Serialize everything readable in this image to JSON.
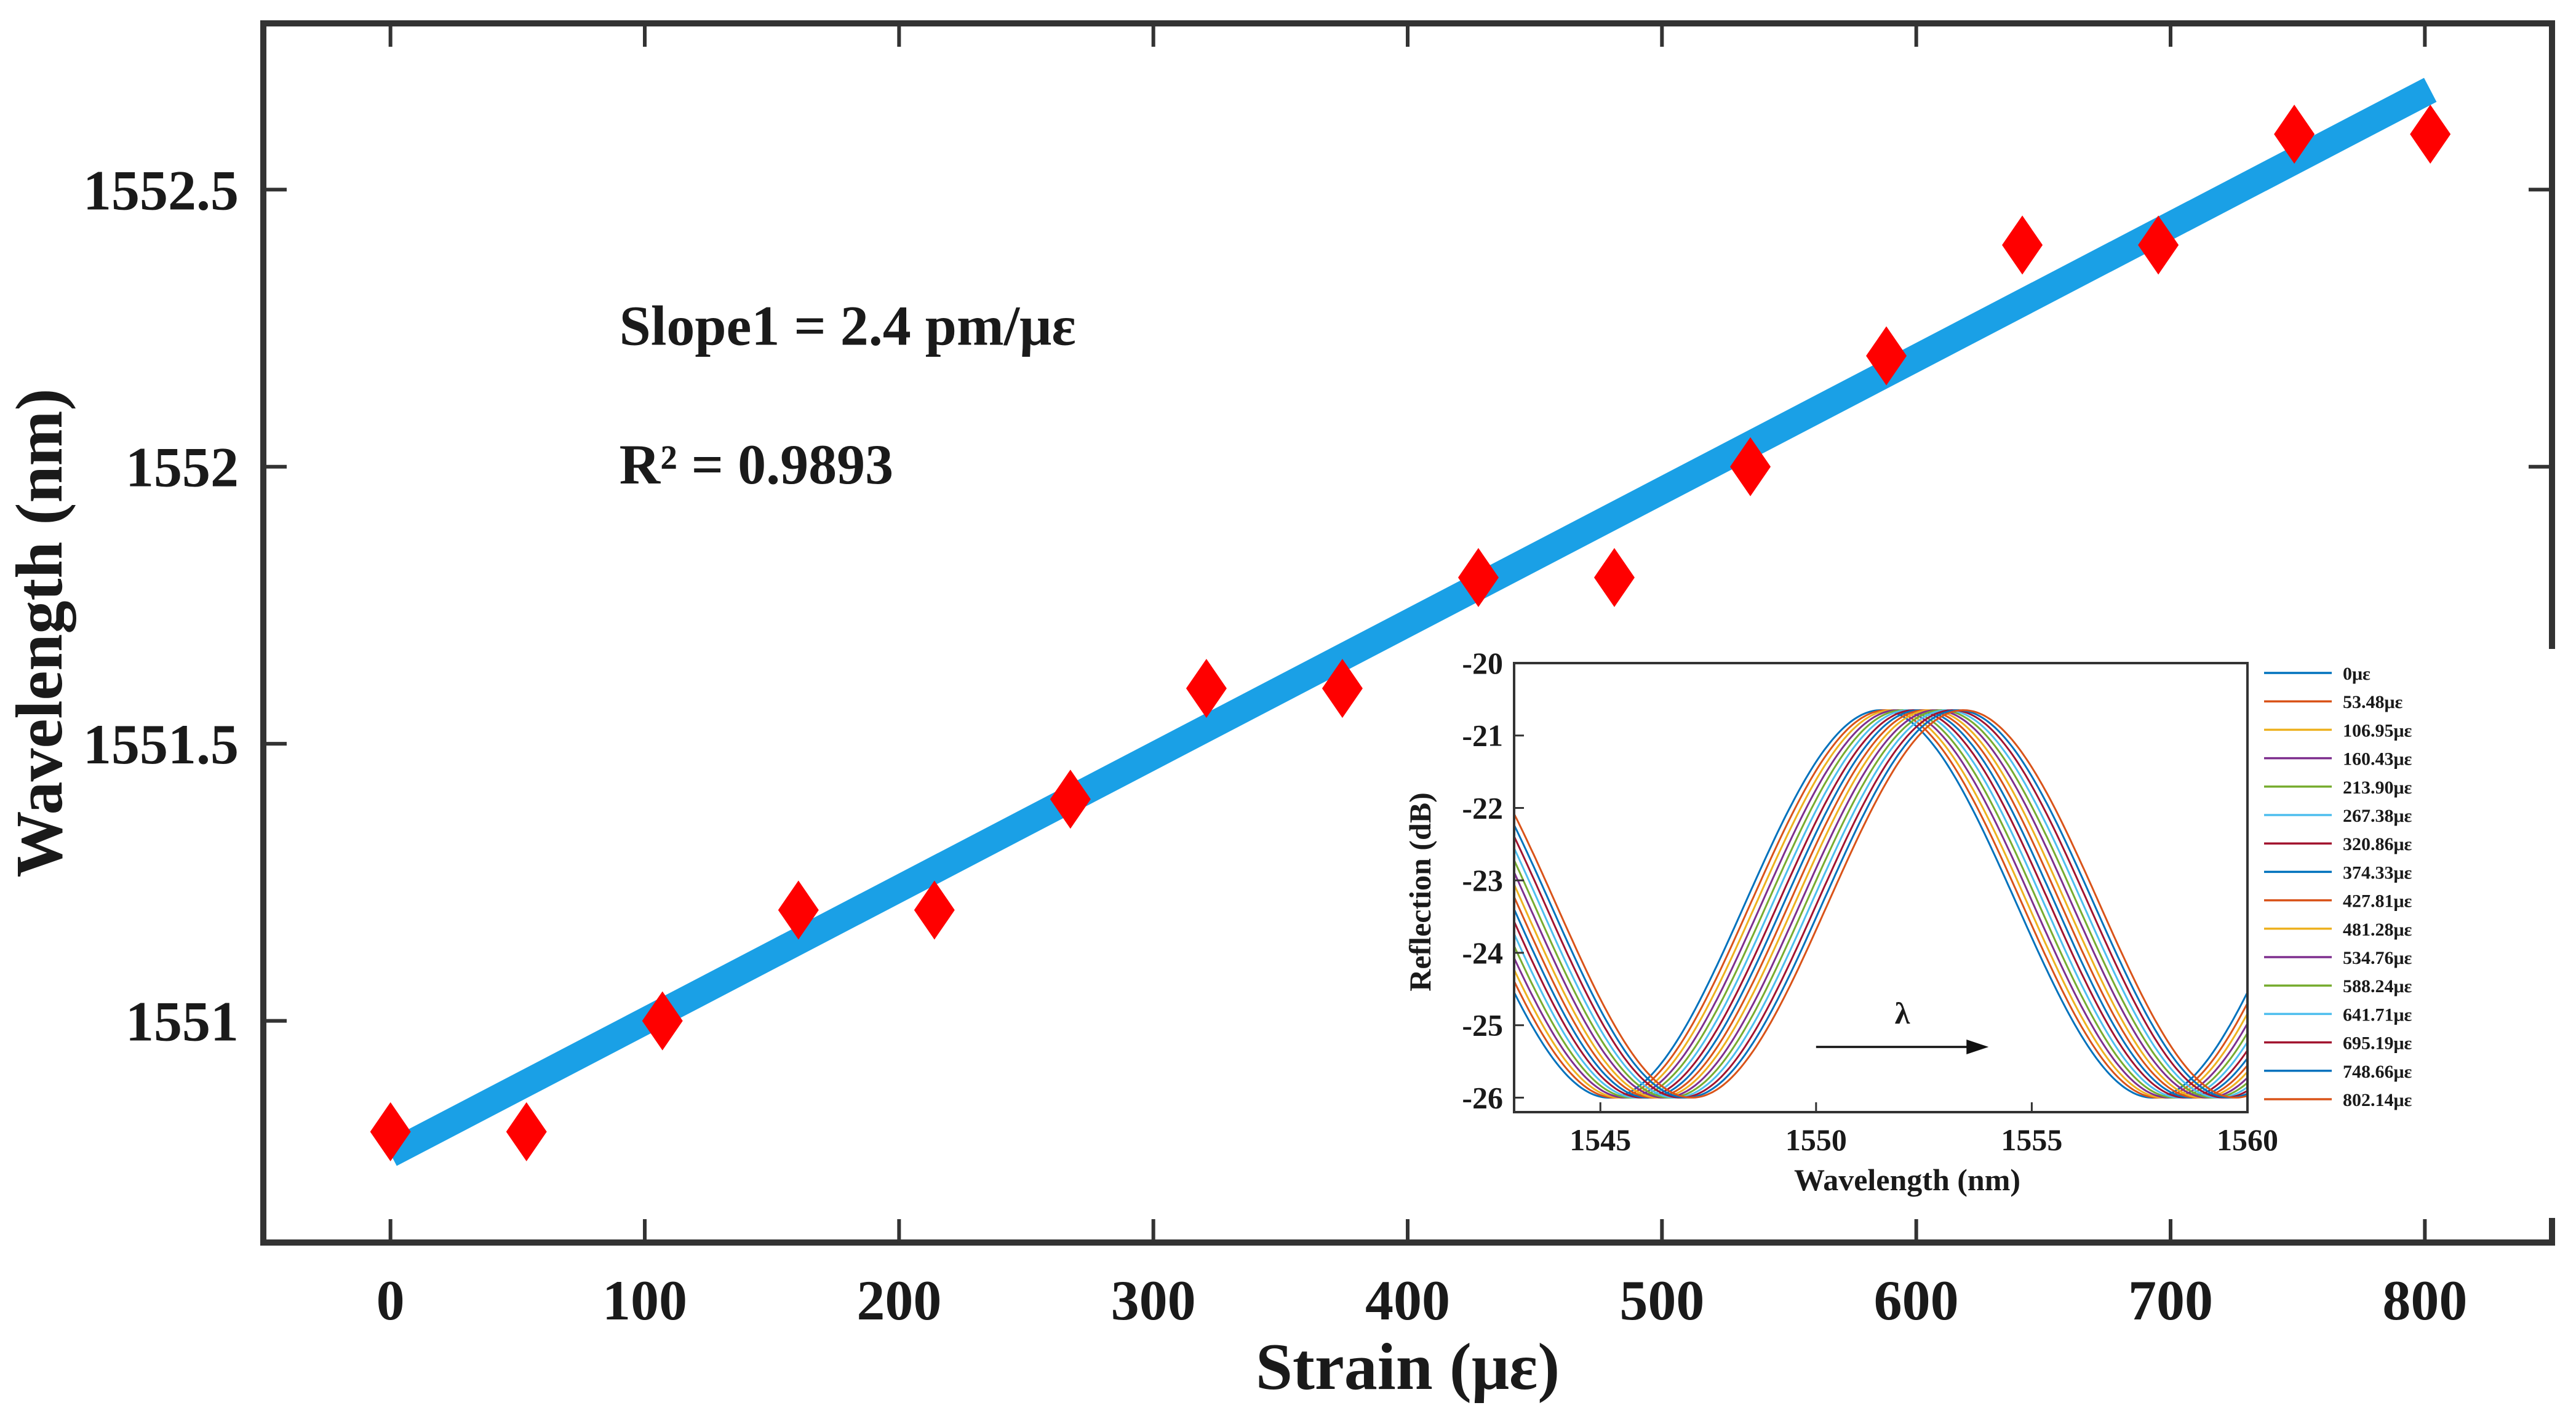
{
  "chart_data": [
    {
      "id": "main",
      "type": "scatter",
      "xlabel": "Strain (με)",
      "ylabel": "Wavelength (nm)",
      "xlim": [
        -50,
        850
      ],
      "ylim": [
        1550.6,
        1552.8
      ],
      "xticks": [
        0,
        100,
        200,
        300,
        400,
        500,
        600,
        700,
        800
      ],
      "yticks": [
        1551,
        1551.5,
        1552,
        1552.5
      ],
      "ytick_labels": [
        "1551",
        "1551.5",
        "1552",
        "1552.5"
      ],
      "grid": false,
      "series": [
        {
          "name": "measured",
          "marker": "diamond",
          "color": "#ff0000",
          "x": [
            0,
            53.48,
            106.95,
            160.43,
            213.9,
            267.38,
            320.86,
            374.33,
            427.81,
            481.28,
            534.76,
            588.24,
            641.71,
            695.19,
            748.66,
            802.14
          ],
          "y": [
            1550.8,
            1550.8,
            1551.0,
            1551.2,
            1551.2,
            1551.4,
            1551.6,
            1551.6,
            1551.8,
            1551.8,
            1552.0,
            1552.2,
            1552.4,
            1552.4,
            1552.6,
            1552.6
          ]
        },
        {
          "name": "linear fit",
          "type": "line",
          "color": "#1aa0e6",
          "x": [
            0,
            802.14
          ],
          "y": [
            1550.76,
            1552.68
          ]
        }
      ],
      "annotations": [
        {
          "text": "Slope1 = 2.4 pm/με",
          "x": 90,
          "y": 1552.22
        },
        {
          "text": "R² = 0.9893",
          "x": 90,
          "y": 1551.97
        }
      ]
    },
    {
      "id": "inset",
      "type": "line",
      "xlabel": "Wavelength (nm)",
      "ylabel": "Reflection (dB)",
      "xlim": [
        1543,
        1560
      ],
      "ylim": [
        -26.2,
        -20
      ],
      "xticks": [
        1545,
        1550,
        1555,
        1560
      ],
      "yticks": [
        -20,
        -21,
        -22,
        -23,
        -24,
        -25,
        -26
      ],
      "legend_position": "right",
      "peak_start": 1551.5,
      "peak_shift_per_curve": 0.128,
      "period": 12.6,
      "max_db": -20.65,
      "min_db": -26.0,
      "arrow_label": "λ",
      "arrow_from": 1550,
      "arrow_to": 1554,
      "arrow_y": -25.3,
      "series": [
        {
          "name": "0με",
          "color": "#0072bd"
        },
        {
          "name": "53.48με",
          "color": "#d95319"
        },
        {
          "name": "106.95με",
          "color": "#edb120"
        },
        {
          "name": "160.43με",
          "color": "#7e2f8e"
        },
        {
          "name": "213.90με",
          "color": "#77ac30"
        },
        {
          "name": "267.38με",
          "color": "#4dbeee"
        },
        {
          "name": "320.86με",
          "color": "#a2142f"
        },
        {
          "name": "374.33με",
          "color": "#0072bd"
        },
        {
          "name": "427.81με",
          "color": "#d95319"
        },
        {
          "name": "481.28με",
          "color": "#edb120"
        },
        {
          "name": "534.76με",
          "color": "#7e2f8e"
        },
        {
          "name": "588.24με",
          "color": "#77ac30"
        },
        {
          "name": "641.71με",
          "color": "#4dbeee"
        },
        {
          "name": "695.19με",
          "color": "#a2142f"
        },
        {
          "name": "748.66με",
          "color": "#0072bd"
        },
        {
          "name": "802.14με",
          "color": "#d95319"
        }
      ]
    }
  ]
}
